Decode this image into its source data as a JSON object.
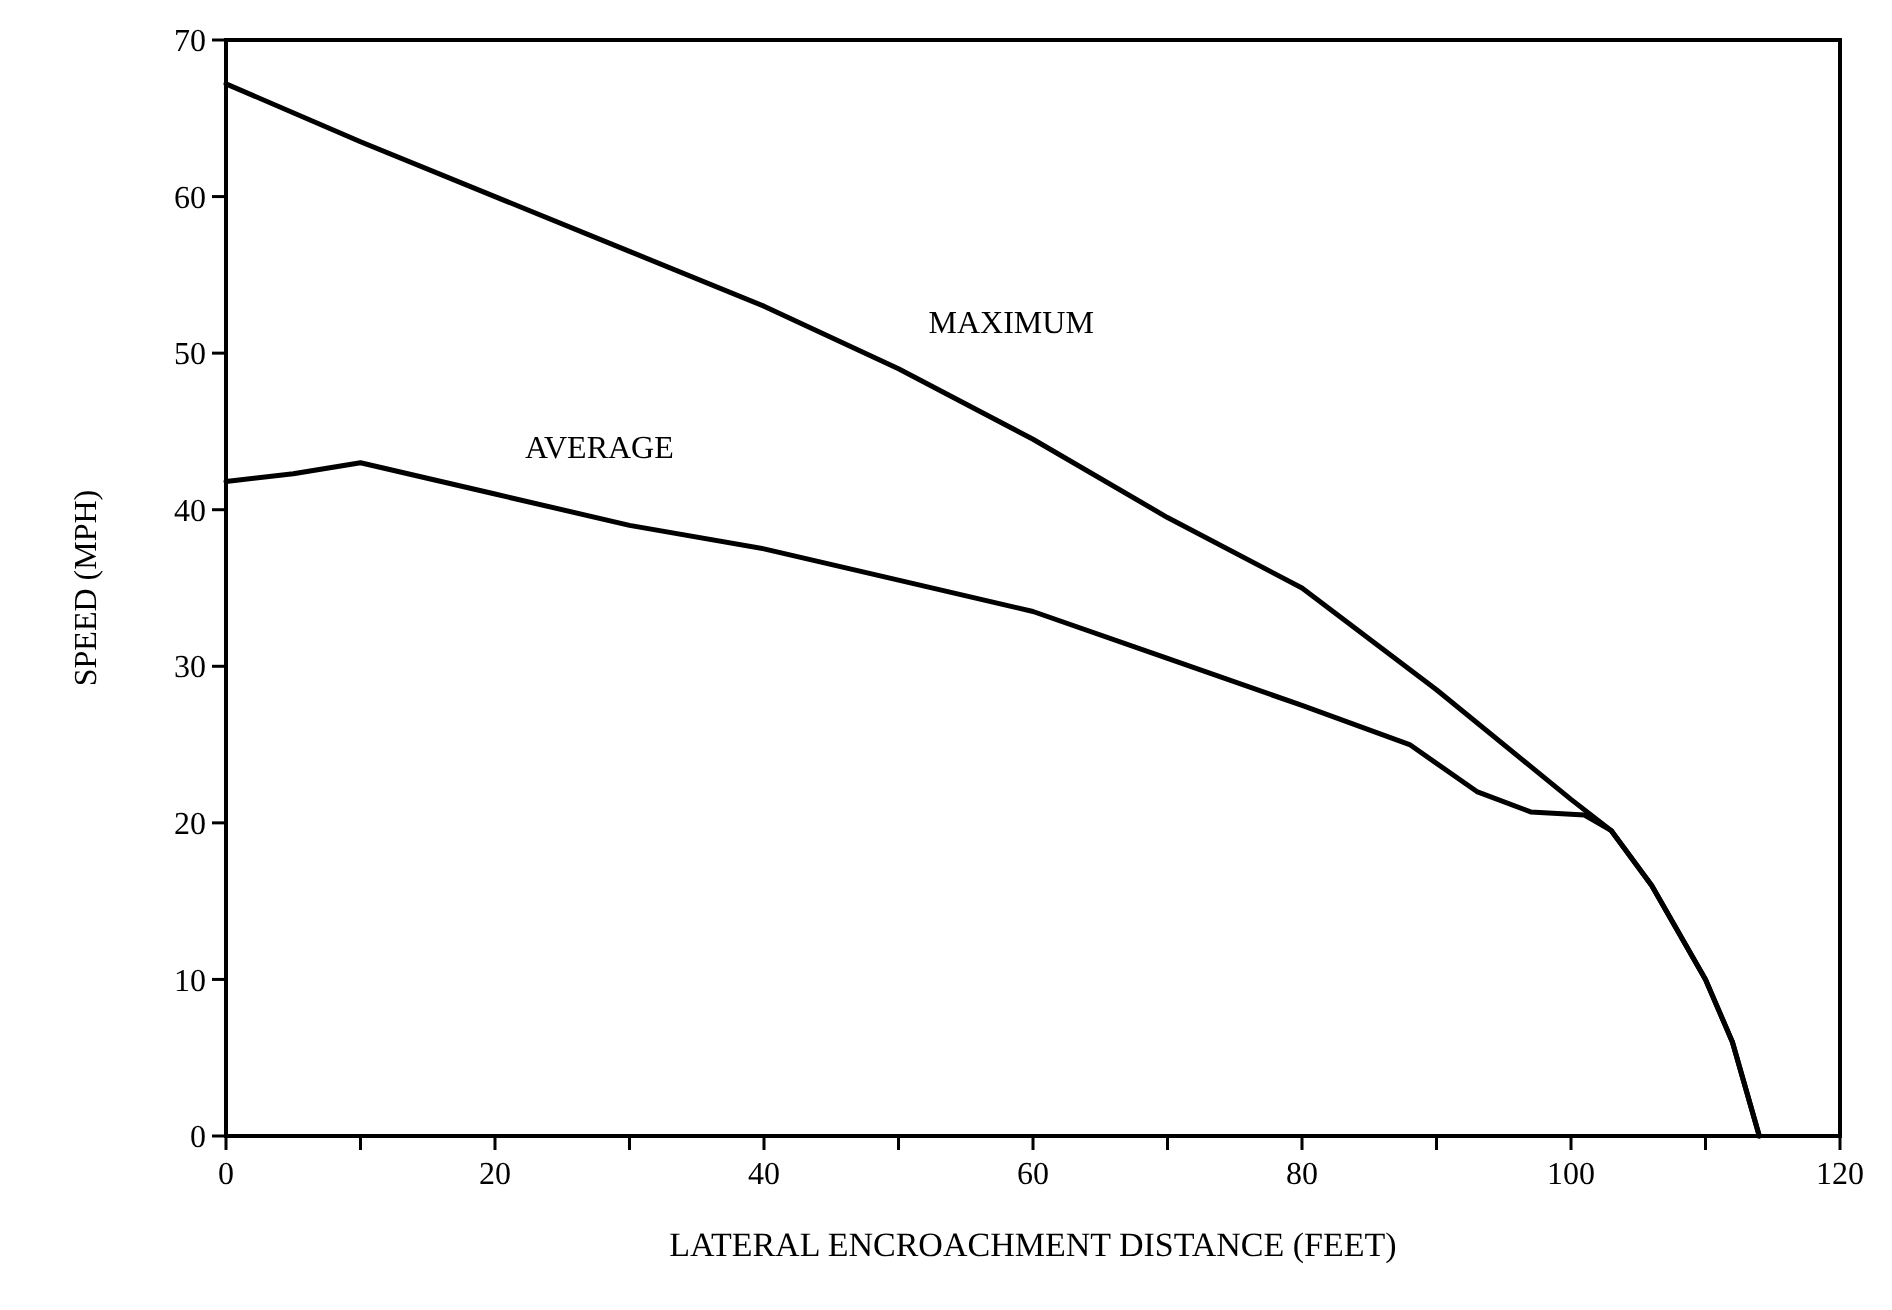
{
  "chart_data": {
    "type": "line",
    "xlabel": "LATERAL ENCROACHMENT DISTANCE (FEET)",
    "ylabel": "SPEED (MPH)",
    "xlim": [
      0,
      120
    ],
    "ylim": [
      0,
      70
    ],
    "xticks": [
      0,
      {
        "value": 10,
        "label": null
      },
      20,
      {
        "value": 30,
        "label": null
      },
      40,
      {
        "value": 50,
        "label": null
      },
      60,
      {
        "value": 70,
        "label": null
      },
      80,
      {
        "value": 90,
        "label": null
      },
      100,
      {
        "value": 110,
        "label": null
      },
      120
    ],
    "yticks": [
      0,
      10,
      20,
      30,
      40,
      50,
      60,
      70
    ],
    "grid": false,
    "marker": "none",
    "line_style": "solid",
    "series": [
      {
        "name": "MAXIMUM",
        "color": "#000000",
        "x": [
          0,
          10,
          20,
          30,
          40,
          50,
          60,
          70,
          80,
          90,
          100,
          103,
          106,
          110,
          112,
          114
        ],
        "values": [
          67.2,
          63.5,
          60,
          56.5,
          53,
          49,
          44.5,
          39.5,
          35,
          28.5,
          21.5,
          19.5,
          16,
          10,
          6,
          0
        ]
      },
      {
        "name": "AVERAGE",
        "color": "#000000",
        "x": [
          0,
          5,
          10,
          20,
          30,
          40,
          50,
          60,
          70,
          80,
          88,
          93,
          97,
          101,
          103,
          106,
          110,
          112,
          114
        ],
        "values": [
          41.8,
          42.3,
          43,
          41,
          39,
          37.5,
          35.5,
          33.5,
          30.5,
          27.5,
          25,
          22,
          20.7,
          20.5,
          19.5,
          16,
          10,
          6,
          0
        ]
      }
    ]
  }
}
